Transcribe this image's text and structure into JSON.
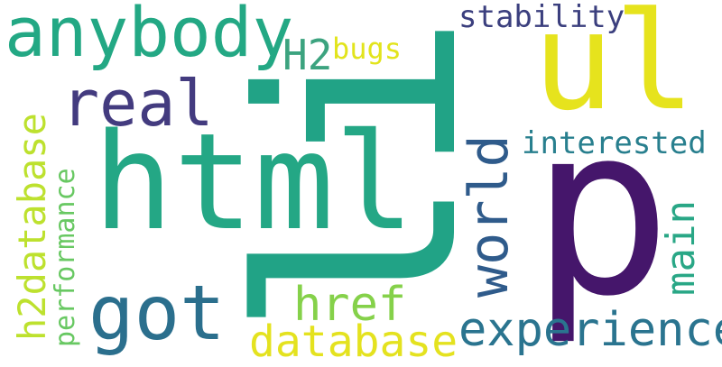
{
  "words": {
    "li": {
      "text": "li",
      "color": "#21a386"
    },
    "p": {
      "text": "p",
      "color": "#45166b"
    },
    "ul": {
      "text": "ul",
      "color": "#e6e31d"
    },
    "html": {
      "text": "html",
      "color": "#24a785"
    },
    "anybody": {
      "text": "anybody",
      "color": "#23a884"
    },
    "real": {
      "text": "real",
      "color": "#433b7f"
    },
    "got": {
      "text": "got",
      "color": "#2b6f8d"
    },
    "h2": {
      "text": "H2",
      "color": "#3ca37f"
    },
    "bugs": {
      "text": "bugs",
      "color": "#e2e41c"
    },
    "stability": {
      "text": "stability",
      "color": "#3b3f7e"
    },
    "world": {
      "text": "world",
      "color": "#2f5b8b"
    },
    "interested": {
      "text": "interested",
      "color": "#287f8e"
    },
    "main": {
      "text": "main",
      "color": "#29a786"
    },
    "h2database": {
      "text": "h2database",
      "color": "#bde12e"
    },
    "performance": {
      "text": "performance",
      "color": "#68c862"
    },
    "href": {
      "text": "href",
      "color": "#85d14a"
    },
    "database": {
      "text": "database",
      "color": "#e4e21f"
    },
    "experience": {
      "text": "experience",
      "color": "#2a748f"
    }
  }
}
